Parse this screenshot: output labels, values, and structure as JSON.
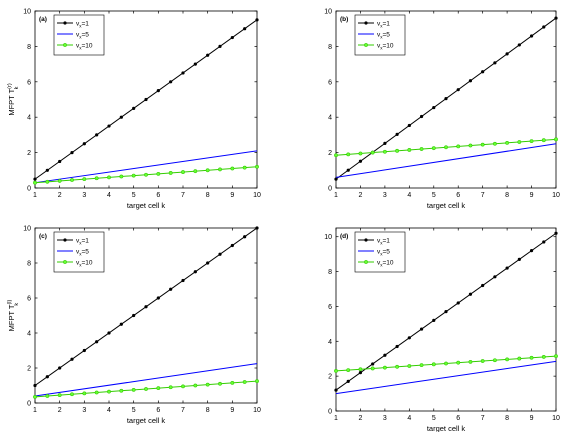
{
  "figure": {
    "colors": {
      "black": "#000000",
      "blue": "#0000ff",
      "green": "#33cc00",
      "marker_green": "#66ff33"
    },
    "legend_entries": [
      {
        "prefix": "v",
        "sub": "x",
        "value": "=1",
        "color": "#000000",
        "marker": "filled-circle"
      },
      {
        "prefix": "v",
        "sub": "x",
        "value": "=5",
        "color": "#0000ff",
        "marker": "none"
      },
      {
        "prefix": "v",
        "sub": "x",
        "value": "=10",
        "color": "#33cc00",
        "marker": "open-circle"
      }
    ]
  },
  "chart_data": [
    {
      "type": "line",
      "panel_label": "(a)",
      "xlabel": "target cell k",
      "ylabel": {
        "main": "MFPT T",
        "sup": "(r)",
        "sub": "k"
      },
      "xlim": [
        1,
        10
      ],
      "ylim": [
        0,
        10
      ],
      "xticks": [
        1,
        2,
        3,
        4,
        5,
        6,
        7,
        8,
        9,
        10
      ],
      "yticks": [
        0,
        2,
        4,
        6,
        8,
        10
      ],
      "legend_position": "top-left",
      "series": [
        {
          "name": "vx=1",
          "x_start": 1,
          "x_end": 10,
          "x_step": 0.5,
          "y_start": 0.5,
          "y_end": 9.5
        },
        {
          "name": "vx=5",
          "x_start": 1,
          "x_end": 10,
          "x_step": null,
          "y_start": 0.3,
          "y_end": 2.1
        },
        {
          "name": "vx=10",
          "x_start": 1,
          "x_end": 10,
          "x_step": 0.5,
          "y_start": 0.3,
          "y_end": 1.2
        }
      ]
    },
    {
      "type": "line",
      "panel_label": "(b)",
      "xlabel": "target cell k",
      "ylabel": null,
      "xlim": [
        1,
        10
      ],
      "ylim": [
        0,
        10
      ],
      "xticks": [
        1,
        2,
        3,
        4,
        5,
        6,
        7,
        8,
        9,
        10
      ],
      "yticks": [
        0,
        2,
        4,
        6,
        8,
        10
      ],
      "legend_position": "top-left",
      "series": [
        {
          "name": "vx=1",
          "x_start": 1,
          "x_end": 10,
          "x_step": 0.5,
          "y_start": 0.5,
          "y_end": 9.6
        },
        {
          "name": "vx=5",
          "x_start": 1,
          "x_end": 10,
          "x_step": null,
          "y_start": 0.6,
          "y_end": 2.5
        },
        {
          "name": "vx=10",
          "x_start": 1,
          "x_end": 10,
          "x_step": 0.5,
          "y_start": 1.85,
          "y_end": 2.75
        }
      ]
    },
    {
      "type": "line",
      "panel_label": "(c)",
      "xlabel": "target cell k",
      "ylabel": {
        "main": "MFPT T",
        "sup": "(l)",
        "sub": "k"
      },
      "xlim": [
        1,
        10
      ],
      "ylim": [
        0,
        10
      ],
      "xticks": [
        1,
        2,
        3,
        4,
        5,
        6,
        7,
        8,
        9,
        10
      ],
      "yticks": [
        0,
        2,
        4,
        6,
        8,
        10
      ],
      "legend_position": "top-left",
      "series": [
        {
          "name": "vx=1",
          "x_start": 1,
          "x_end": 10,
          "x_step": 0.5,
          "y_start": 1.0,
          "y_end": 10.0
        },
        {
          "name": "vx=5",
          "x_start": 1,
          "x_end": 10,
          "x_step": null,
          "y_start": 0.4,
          "y_end": 2.25
        },
        {
          "name": "vx=10",
          "x_start": 1,
          "x_end": 10,
          "x_step": 0.5,
          "y_start": 0.35,
          "y_end": 1.25
        }
      ]
    },
    {
      "type": "line",
      "panel_label": "(d)",
      "xlabel": "target cell k",
      "ylabel": null,
      "xlim": [
        1,
        10
      ],
      "ylim": [
        0,
        10.5
      ],
      "xticks": [
        1,
        2,
        3,
        4,
        5,
        6,
        7,
        8,
        9,
        10
      ],
      "yticks": [
        0,
        2,
        4,
        6,
        8,
        10
      ],
      "legend_position": "top-left",
      "series": [
        {
          "name": "vx=1",
          "x_start": 1,
          "x_end": 10,
          "x_step": 0.5,
          "y_start": 1.2,
          "y_end": 10.2
        },
        {
          "name": "vx=5",
          "x_start": 1,
          "x_end": 10,
          "x_step": null,
          "y_start": 1.0,
          "y_end": 2.85
        },
        {
          "name": "vx=10",
          "x_start": 1,
          "x_end": 10,
          "x_step": 0.5,
          "y_start": 2.3,
          "y_end": 3.15
        }
      ]
    }
  ]
}
